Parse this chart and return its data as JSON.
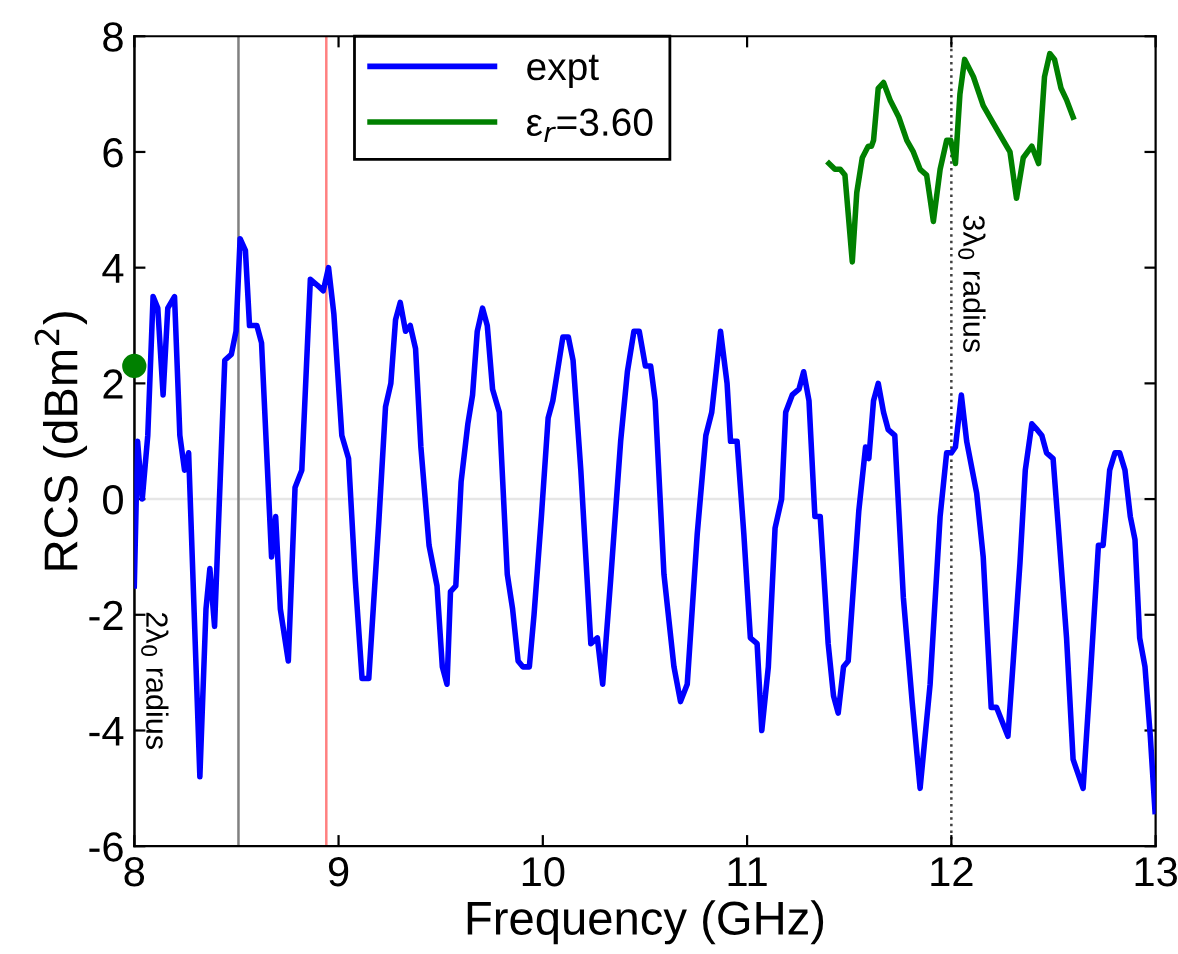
{
  "chart_data": {
    "type": "line",
    "xlabel": "Frequency (GHz)",
    "ylabel": "RCS (dBm$^{2}$)",
    "xlim": [
      8,
      13
    ],
    "ylim": [
      -6,
      8
    ],
    "xticks": [
      8,
      9,
      10,
      11,
      12,
      13
    ],
    "yticks": [
      -6,
      -4,
      -2,
      0,
      2,
      4,
      6,
      8
    ],
    "legend": "top",
    "grid": false,
    "series": [
      {
        "name": "expt",
        "color": "#0000ff",
        "x": [
          8.0,
          8.016,
          8.039,
          8.066,
          8.092,
          8.115,
          8.141,
          8.164,
          8.197,
          8.223,
          8.246,
          8.266,
          8.321,
          8.351,
          8.37,
          8.393,
          8.443,
          8.475,
          8.498,
          8.518,
          8.544,
          8.564,
          8.6,
          8.623,
          8.672,
          8.692,
          8.715,
          8.754,
          8.787,
          8.82,
          8.862,
          8.895,
          8.925,
          8.951,
          8.977,
          9.016,
          9.049,
          9.082,
          9.115,
          9.148,
          9.197,
          9.23,
          9.256,
          9.279,
          9.302,
          9.328,
          9.351,
          9.377,
          9.403,
          9.443,
          9.482,
          9.508,
          9.531,
          9.548,
          9.574,
          9.6,
          9.633,
          9.656,
          9.679,
          9.705,
          9.728,
          9.754,
          9.787,
          9.826,
          9.852,
          9.879,
          9.902,
          9.934,
          9.957,
          9.993,
          10.026,
          10.049,
          10.098,
          10.125,
          10.148,
          10.186,
          10.235,
          10.267,
          10.293,
          10.332,
          10.381,
          10.414,
          10.446,
          10.472,
          10.502,
          10.528,
          10.55,
          10.593,
          10.642,
          10.674,
          10.707,
          10.756,
          10.798,
          10.827,
          10.87,
          10.902,
          10.919,
          10.951,
          10.984,
          11.016,
          11.049,
          11.072,
          11.104,
          11.137,
          11.169,
          11.189,
          11.221,
          11.254,
          11.277,
          11.303,
          11.332,
          11.358,
          11.397,
          11.423,
          11.446,
          11.472,
          11.495,
          11.547,
          11.58,
          11.596,
          11.619,
          11.642,
          11.668,
          11.691,
          11.723,
          11.765,
          11.808,
          11.847,
          11.896,
          11.945,
          11.977,
          12.0,
          12.02,
          12.049,
          12.075,
          12.124,
          12.156,
          12.195,
          12.221,
          12.277,
          12.303,
          12.336,
          12.362,
          12.394,
          12.42,
          12.443,
          12.466,
          12.498,
          12.524,
          12.564,
          12.596,
          12.645,
          12.678,
          12.72,
          12.743,
          12.775,
          12.801,
          12.824,
          12.85,
          12.876,
          12.899,
          12.922,
          12.948,
          12.974,
          12.997
        ],
        "values": [
          -1.5,
          1.0,
          0.0,
          1.1,
          3.5,
          3.3,
          1.8,
          3.3,
          3.5,
          1.1,
          0.5,
          0.8,
          -4.8,
          -1.9,
          -1.2,
          -2.2,
          2.4,
          2.5,
          2.9,
          4.5,
          4.3,
          3.0,
          3.0,
          2.7,
          -1.0,
          -0.3,
          -1.9,
          -2.8,
          0.2,
          0.5,
          3.8,
          3.7,
          3.6,
          4.0,
          3.2,
          1.1,
          0.7,
          -1.4,
          -3.1,
          -3.1,
          -0.4,
          1.6,
          2.0,
          3.1,
          3.4,
          2.9,
          3.0,
          2.6,
          0.9,
          -0.8,
          -1.5,
          -2.9,
          -3.2,
          -1.6,
          -1.5,
          0.3,
          1.3,
          1.8,
          2.9,
          3.3,
          3.0,
          1.9,
          1.5,
          -1.3,
          -1.9,
          -2.8,
          -2.9,
          -2.9,
          -2.0,
          -0.3,
          1.4,
          1.7,
          2.8,
          2.8,
          2.4,
          0.5,
          -2.5,
          -2.4,
          -3.2,
          -1.4,
          1.0,
          2.2,
          2.9,
          2.9,
          2.3,
          2.3,
          1.7,
          -1.3,
          -2.9,
          -3.5,
          -3.2,
          -0.6,
          1.1,
          1.5,
          2.9,
          2.0,
          1.0,
          1.0,
          -0.6,
          -2.4,
          -2.5,
          -4.0,
          -2.9,
          -0.5,
          0.0,
          1.5,
          1.8,
          1.9,
          2.2,
          1.7,
          -0.3,
          -0.3,
          -2.5,
          -3.4,
          -3.7,
          -2.9,
          -2.8,
          -0.2,
          0.9,
          0.7,
          1.7,
          2.0,
          1.5,
          1.2,
          1.1,
          -1.7,
          -3.5,
          -5.0,
          -3.2,
          -0.3,
          0.8,
          0.8,
          0.9,
          1.8,
          1.0,
          0.1,
          -1.0,
          -3.6,
          -3.6,
          -4.1,
          -2.8,
          -1.1,
          0.5,
          1.3,
          1.2,
          1.1,
          0.8,
          0.7,
          -0.5,
          -2.4,
          -4.5,
          -5.0,
          -3.2,
          -0.8,
          -0.8,
          0.5,
          0.8,
          0.8,
          0.5,
          -0.3,
          -0.7,
          -2.4,
          -2.9,
          -4.1,
          -5.4
        ]
      },
      {
        "name": "ε$_{r}$=3.60",
        "color": "#008000",
        "x": [
          11.401,
          11.43,
          11.456,
          11.479,
          11.515,
          11.537,
          11.564,
          11.593,
          11.609,
          11.619,
          11.642,
          11.668,
          11.7,
          11.743,
          11.782,
          11.814,
          11.847,
          11.879,
          11.912,
          11.945,
          11.977,
          11.997,
          12.02,
          12.042,
          12.065,
          12.108,
          12.156,
          12.205,
          12.254,
          12.287,
          12.319,
          12.352,
          12.394,
          12.427,
          12.456,
          12.482,
          12.505,
          12.537,
          12.564,
          12.596
        ],
        "values": [
          5.8,
          5.7,
          5.7,
          5.6,
          4.1,
          5.3,
          5.9,
          6.1,
          6.1,
          6.2,
          7.1,
          7.2,
          6.9,
          6.6,
          6.2,
          6.0,
          5.7,
          5.6,
          4.8,
          5.7,
          6.2,
          6.2,
          5.8,
          7.0,
          7.6,
          7.3,
          6.8,
          6.5,
          6.2,
          6.0,
          5.2,
          5.9,
          6.1,
          5.8,
          7.3,
          7.7,
          7.6,
          7.1,
          6.9,
          6.6
        ]
      },
      {
        "type": "scatter",
        "marker": "circle",
        "color": "#008000",
        "x": [
          8.0
        ],
        "values": [
          2.3
        ]
      }
    ],
    "ref_lines": [
      {
        "axis": "x",
        "value": 8,
        "color": "#000000",
        "line_style": "solid",
        "label": "2λ$_{0}$ radius"
      },
      {
        "axis": "y",
        "value": 0,
        "color": "#e6e6e6",
        "line_style": "solid"
      },
      {
        "axis": "x",
        "value": 8.51,
        "color": "#808080",
        "line_style": "solid"
      },
      {
        "axis": "x",
        "value": 8.94,
        "color": "#ff8080",
        "line_style": "solid"
      },
      {
        "axis": "x",
        "value": 12,
        "color": "#404040",
        "line_style": "dotted",
        "label": "3λ$_{0}$ radius"
      }
    ]
  }
}
